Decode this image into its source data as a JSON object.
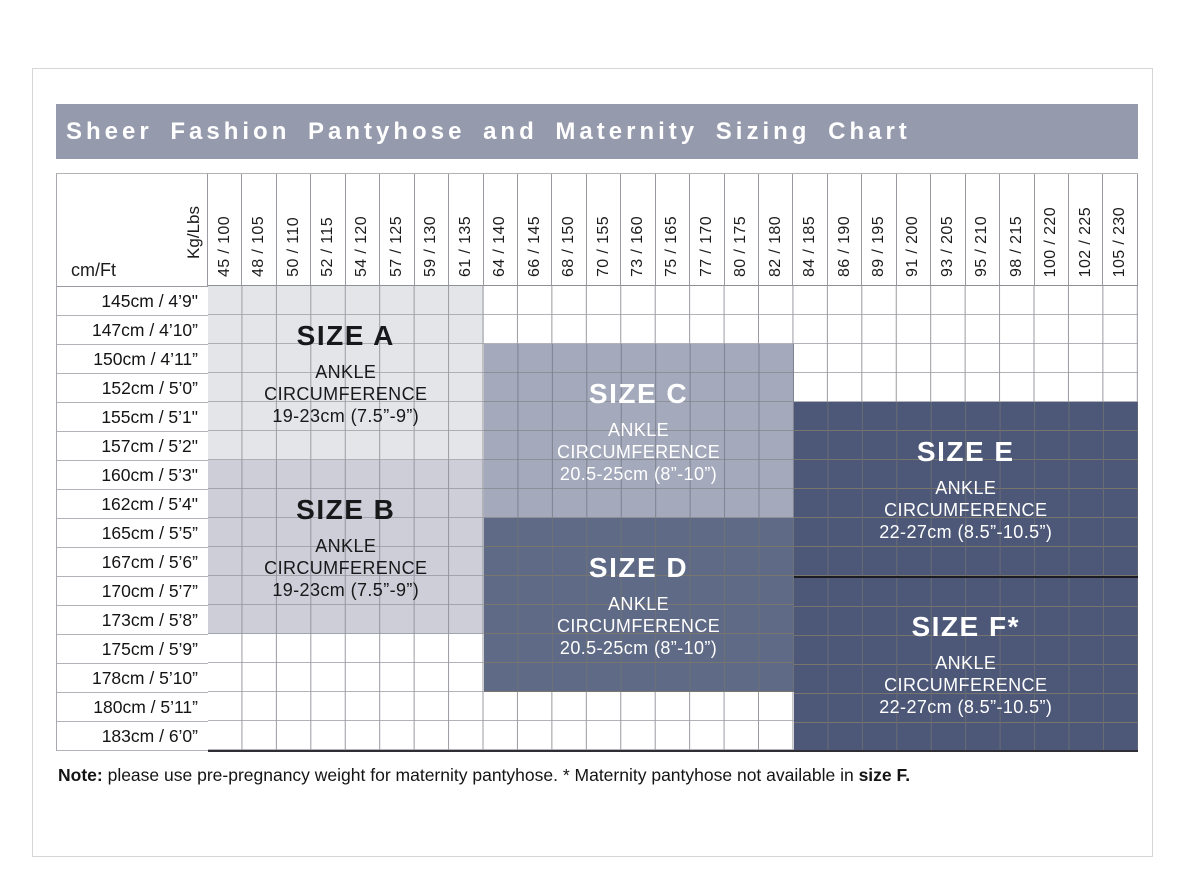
{
  "title_bar": {
    "title": "Sheer Fashion Pantyhose and Maternity Sizing Chart",
    "bg": "#959aac"
  },
  "note": {
    "prefix": "Note:",
    "body": " please use pre-pregnancy weight for maternity pantyhose. * Maternity pantyhose not available in ",
    "suffix": "size F."
  },
  "chart_data": {
    "type": "heatmap",
    "title": "Sheer Fashion Pantyhose and Maternity Sizing Chart",
    "weight_axis_label": "Kg/Lbs",
    "height_axis_label": "cm/Ft",
    "weight_columns_kg_lbs": [
      "45 / 100",
      "48 / 105",
      "50 / 110",
      "52 / 115",
      "54 / 120",
      "57 / 125",
      "59 / 130",
      "61 / 135",
      "64 / 140",
      "66 / 145",
      "68 / 150",
      "70 / 155",
      "73 / 160",
      "75 / 165",
      "77 / 170",
      "80 / 175",
      "82 / 180",
      "84 / 185",
      "86 / 190",
      "89 / 195",
      "91 / 200",
      "93 / 205",
      "95 / 210",
      "98 / 215",
      "100 / 220",
      "102 / 225",
      "105 / 230"
    ],
    "height_rows_cm_ft": [
      "145cm / 4’9\"",
      "147cm / 4’10”",
      "150cm / 4’11”",
      "152cm / 5’0”",
      "155cm / 5’1\"",
      "157cm / 5’2\"",
      "160cm / 5’3\"",
      "162cm / 5’4\"",
      "165cm / 5’5”",
      "167cm / 5’6”",
      "170cm / 5’7”",
      "173cm / 5’8”",
      "175cm / 5’9”",
      "178cm / 5’10”",
      "180cm / 5’11”",
      "183cm / 6’0”"
    ],
    "regions": [
      {
        "id": "a",
        "name": "SIZE A",
        "ankle_line1": "ANKLE",
        "ankle_line2": "CIRCUMFERENCE",
        "ankle_range": "19-23cm (7.5”-9”)",
        "col_start": 1,
        "col_end": 8,
        "row_start": 1,
        "row_end": 6,
        "bg": "#e4e5e9",
        "grid": "#9b9da4",
        "grid_h": "#aeafb5",
        "text": "#17181a",
        "dark_top": false
      },
      {
        "id": "b",
        "name": "SIZE B",
        "ankle_line1": "ANKLE",
        "ankle_line2": "CIRCUMFERENCE",
        "ankle_range": "19-23cm (7.5”-9”)",
        "col_start": 1,
        "col_end": 8,
        "row_start": 7,
        "row_end": 12,
        "bg": "#cdced7",
        "grid": "#94969e",
        "grid_h": "#a3a5ad",
        "text": "#17181a",
        "dark_top": false
      },
      {
        "id": "c",
        "name": "SIZE C",
        "ankle_line1": "ANKLE",
        "ankle_line2": "CIRCUMFERENCE",
        "ankle_range": "20.5-25cm (8”-10”)",
        "col_start": 9,
        "col_end": 17,
        "row_start": 3,
        "row_end": 8,
        "bg": "#a4aabc",
        "grid": "#7d8290",
        "grid_h": "#8d9097",
        "text": "#ffffff",
        "dark_top": false
      },
      {
        "id": "d",
        "name": "SIZE D",
        "ankle_line1": "ANKLE",
        "ankle_line2": "CIRCUMFERENCE",
        "ankle_range": "20.5-25cm (8”-10”)",
        "col_start": 9,
        "col_end": 17,
        "row_start": 9,
        "row_end": 14,
        "bg": "#5e6a86",
        "grid": "#6f7277",
        "grid_h": "#78766f",
        "text": "#ffffff",
        "dark_top": false
      },
      {
        "id": "e",
        "name": "SIZE E",
        "ankle_line1": "ANKLE",
        "ankle_line2": "CIRCUMFERENCE",
        "ankle_range": "22-27cm (8.5”-10.5”)",
        "col_start": 18,
        "col_end": 27,
        "row_start": 5,
        "row_end": 10,
        "bg": "#4d5878",
        "grid": "#686c74",
        "grid_h": "#76746d",
        "text": "#ffffff",
        "dark_top": false
      },
      {
        "id": "f",
        "name": "SIZE F*",
        "ankle_line1": "ANKLE",
        "ankle_line2": "CIRCUMFERENCE",
        "ankle_range": "22-27cm (8.5”-10.5”)",
        "col_start": 18,
        "col_end": 27,
        "row_start": 11,
        "row_end": 16,
        "bg": "#4d5878",
        "grid": "#686c74",
        "grid_h": "#76746d",
        "text": "#ffffff",
        "dark_top": true
      }
    ],
    "grid_columns": 27,
    "grid_rows": 16,
    "legend_position": "none",
    "grid": true
  }
}
